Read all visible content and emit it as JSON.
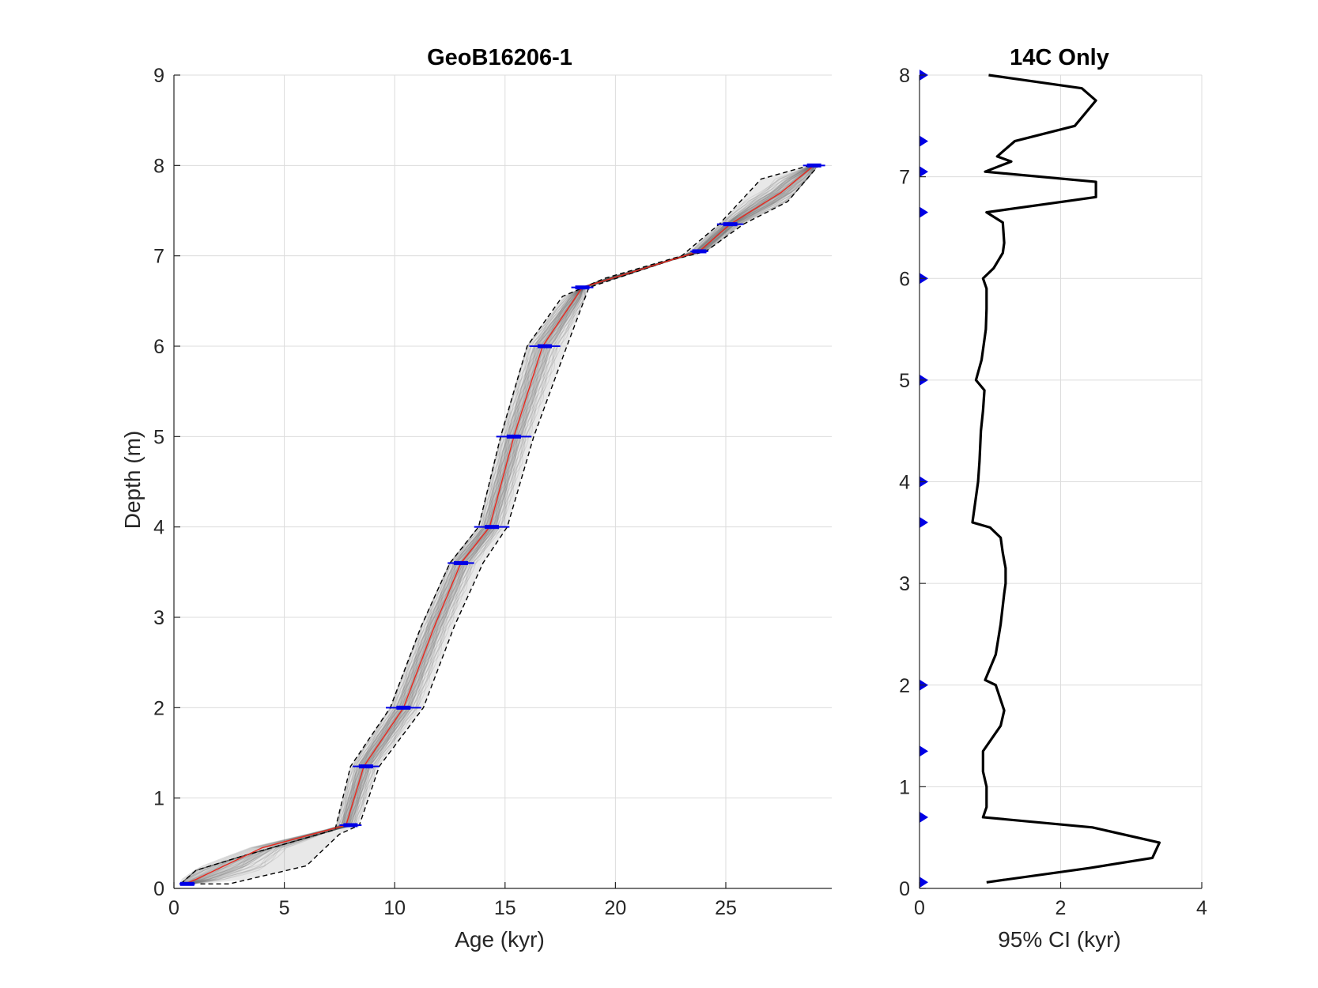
{
  "chart_data": [
    {
      "type": "line",
      "title": "GeoB16206-1",
      "xlabel": "Age (kyr)",
      "ylabel": "Depth (m)",
      "xlim": [
        0,
        29.8
      ],
      "ylim": [
        0,
        9
      ],
      "xticks": [
        0,
        5,
        10,
        15,
        20,
        25
      ],
      "yticks": [
        0,
        1,
        2,
        3,
        4,
        5,
        6,
        7,
        8,
        9
      ],
      "grid": true,
      "legend": "none",
      "colors": {
        "median": "#e8281e",
        "ci_bounds": "#000000",
        "ensemble": "#7f7f7f",
        "dates": "#0000e6"
      },
      "series": [
        {
          "role": "median",
          "x": [
            0.5,
            1.0,
            4.0,
            7.8,
            8.6,
            10.4,
            11.8,
            13.0,
            14.3,
            15.4,
            16.7,
            18.5,
            23.8,
            25.2,
            27.5,
            29.0
          ],
          "y": [
            0.05,
            0.1,
            0.45,
            0.7,
            1.35,
            2.0,
            2.9,
            3.6,
            4.0,
            5.0,
            6.0,
            6.65,
            7.05,
            7.35,
            7.7,
            8.0
          ]
        },
        {
          "role": "lower-95",
          "x": [
            0.3,
            1.0,
            3.0,
            7.3,
            8.0,
            9.8,
            11.2,
            12.5,
            13.8,
            14.8,
            16.0,
            17.6,
            19.5,
            23.0,
            24.7,
            26.6,
            28.8
          ],
          "y": [
            0.05,
            0.2,
            0.35,
            0.65,
            1.35,
            2.0,
            2.9,
            3.6,
            4.0,
            5.0,
            6.0,
            6.55,
            6.75,
            7.0,
            7.35,
            7.85,
            8.0
          ]
        },
        {
          "role": "upper-95",
          "x": [
            1.2,
            2.5,
            6.0,
            7.5,
            8.4,
            9.3,
            11.3,
            12.7,
            14.0,
            15.1,
            16.3,
            17.8,
            18.8,
            22.5,
            24.1,
            25.8,
            27.8,
            29.2
          ],
          "y": [
            0.05,
            0.05,
            0.25,
            0.6,
            0.7,
            1.35,
            2.0,
            2.9,
            3.6,
            4.0,
            5.0,
            6.0,
            6.65,
            6.95,
            7.05,
            7.35,
            7.6,
            8.0
          ]
        }
      ],
      "dates": [
        {
          "depth": 0.05,
          "age": 0.6,
          "err": 0.35
        },
        {
          "depth": 0.7,
          "age": 8.0,
          "err": 0.5
        },
        {
          "depth": 1.35,
          "age": 8.7,
          "err": 0.6
        },
        {
          "depth": 2.0,
          "age": 10.4,
          "err": 0.8
        },
        {
          "depth": 3.6,
          "age": 13.0,
          "err": 0.6
        },
        {
          "depth": 4.0,
          "age": 14.4,
          "err": 0.8
        },
        {
          "depth": 5.0,
          "age": 15.4,
          "err": 0.8
        },
        {
          "depth": 6.0,
          "age": 16.8,
          "err": 0.7
        },
        {
          "depth": 6.65,
          "age": 18.5,
          "err": 0.5
        },
        {
          "depth": 7.05,
          "age": 23.8,
          "err": 0.4
        },
        {
          "depth": 7.35,
          "age": 25.2,
          "err": 0.6
        },
        {
          "depth": 8.0,
          "age": 29.0,
          "err": 0.5
        }
      ]
    },
    {
      "type": "line",
      "title": "14C Only",
      "xlabel": "95% CI (kyr)",
      "ylabel": "",
      "xlim": [
        0,
        4
      ],
      "ylim": [
        0,
        8
      ],
      "xticks": [
        0,
        2,
        4
      ],
      "yticks": [
        0,
        1,
        2,
        3,
        4,
        5,
        6,
        7,
        8
      ],
      "grid": true,
      "legend": "none",
      "colors": {
        "line": "#000000",
        "markers": "#0000e6"
      },
      "series": [
        {
          "role": "ci-width",
          "x": [
            0.95,
            2.4,
            3.3,
            3.4,
            2.45,
            0.9,
            0.95,
            0.95,
            0.9,
            0.9,
            1.15,
            1.2,
            1.08,
            0.93,
            1.08,
            1.15,
            1.2,
            1.22,
            1.22,
            1.18,
            1.15,
            1.0,
            0.75,
            0.83,
            0.85,
            0.87,
            0.9,
            0.92,
            0.8,
            0.88,
            0.94,
            0.95,
            0.95,
            0.9,
            1.05,
            1.18,
            1.2,
            1.18,
            0.95,
            2.5,
            2.5,
            0.93,
            1.3,
            1.1,
            1.35,
            2.2,
            2.5,
            2.3,
            0.98
          ],
          "y": [
            0.06,
            0.2,
            0.3,
            0.45,
            0.6,
            0.7,
            0.8,
            1.0,
            1.15,
            1.35,
            1.6,
            1.75,
            2.0,
            2.05,
            2.3,
            2.6,
            2.9,
            3.0,
            3.15,
            3.3,
            3.45,
            3.55,
            3.6,
            4.0,
            4.2,
            4.5,
            4.7,
            4.9,
            5.0,
            5.2,
            5.5,
            5.7,
            5.9,
            6.0,
            6.1,
            6.25,
            6.35,
            6.55,
            6.65,
            6.8,
            6.95,
            7.05,
            7.15,
            7.2,
            7.35,
            7.5,
            7.75,
            7.87,
            8.0
          ]
        }
      ],
      "date_depths": [
        0.06,
        0.7,
        1.35,
        2.0,
        3.6,
        4.0,
        5.0,
        6.0,
        6.65,
        7.05,
        7.35,
        8.0
      ]
    }
  ]
}
